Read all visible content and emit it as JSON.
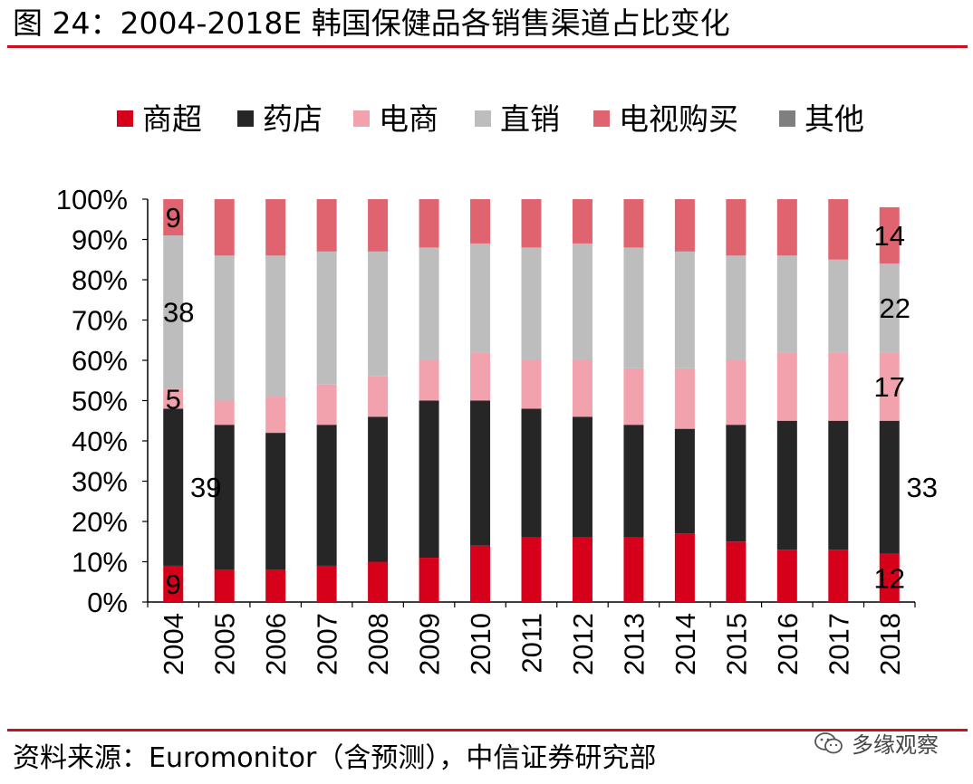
{
  "header": {
    "title": "图 24：2004-2018E 韩国保健品各销售渠道占比变化"
  },
  "footer": {
    "source": "资料来源：Euromonitor（含预测），中信证券研究部",
    "watermark": "多缘观察"
  },
  "colors": {
    "accent": "#c8101e",
    "商超": "#d7001a",
    "药店": "#262626",
    "电商": "#f2a2ad",
    "直销": "#bdbdbd",
    "电视购买": "#e06470",
    "其他": "#7f7f7f"
  },
  "chart_data": {
    "type": "bar",
    "stacked": true,
    "title": "2004-2018E 韩国保健品各销售渠道占比变化",
    "xlabel": "",
    "ylabel": "",
    "ylim": [
      0,
      100
    ],
    "y_ticks": [
      "0%",
      "10%",
      "20%",
      "30%",
      "40%",
      "50%",
      "60%",
      "70%",
      "80%",
      "90%",
      "100%"
    ],
    "legend_position": "top",
    "categories": [
      "2004",
      "2005",
      "2006",
      "2007",
      "2008",
      "2009",
      "2010",
      "2011",
      "2012",
      "2013",
      "2014",
      "2015",
      "2016",
      "2017",
      "2018"
    ],
    "series": [
      {
        "name": "商超",
        "values": [
          9,
          8,
          8,
          9,
          10,
          11,
          14,
          16,
          16,
          16,
          17,
          15,
          13,
          13,
          12
        ]
      },
      {
        "name": "药店",
        "values": [
          39,
          36,
          34,
          35,
          36,
          39,
          36,
          32,
          30,
          28,
          26,
          29,
          32,
          32,
          33
        ]
      },
      {
        "name": "电商",
        "values": [
          5,
          6,
          9,
          10,
          10,
          10,
          12,
          12,
          14,
          14,
          15,
          16,
          17,
          17,
          17
        ]
      },
      {
        "name": "直销",
        "values": [
          38,
          36,
          35,
          33,
          31,
          28,
          27,
          28,
          29,
          30,
          29,
          26,
          24,
          23,
          22
        ]
      },
      {
        "name": "电视购买",
        "values": [
          9,
          14,
          14,
          13,
          13,
          12,
          11,
          12,
          11,
          12,
          13,
          14,
          14,
          15,
          14
        ]
      },
      {
        "name": "其他",
        "values": [
          0,
          0,
          0,
          0,
          0,
          0,
          0,
          0,
          0,
          0,
          0,
          0,
          0,
          0,
          0
        ]
      }
    ],
    "data_labels": [
      {
        "series": "商超",
        "category": "2004",
        "text": "9"
      },
      {
        "series": "药店",
        "category": "2004",
        "text": "39"
      },
      {
        "series": "电商",
        "category": "2004",
        "text": "5"
      },
      {
        "series": "直销",
        "category": "2004",
        "text": "38"
      },
      {
        "series": "电视购买",
        "category": "2004",
        "text": "9"
      },
      {
        "series": "商超",
        "category": "2018",
        "text": "12"
      },
      {
        "series": "药店",
        "category": "2018",
        "text": "33"
      },
      {
        "series": "电商",
        "category": "2018",
        "text": "17"
      },
      {
        "series": "直销",
        "category": "2018",
        "text": "22"
      },
      {
        "series": "电视购买",
        "category": "2018",
        "text": "14"
      }
    ]
  }
}
